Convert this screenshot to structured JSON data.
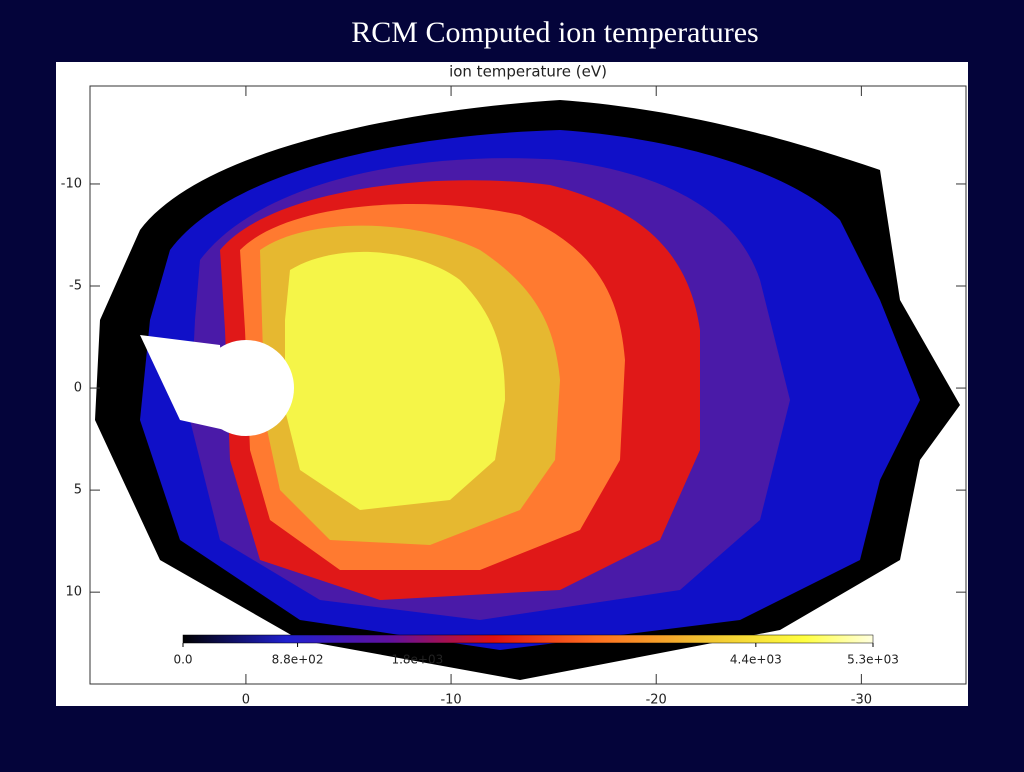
{
  "slide_title": "RCM Computed ion temperatures",
  "chart_data": {
    "type": "contour",
    "title": "ion temperature (eV)",
    "xlim": [
      7.6,
      -35.1
    ],
    "xticks": [
      0,
      -10,
      -20,
      -30
    ],
    "ylim": [
      -14.8,
      14.5
    ],
    "yticks": [
      -10,
      -5,
      0,
      5,
      10
    ],
    "colorbar_lim": [
      0,
      5300
    ],
    "colorbar_ticks": [
      {
        "value": 0,
        "label": "0.0"
      },
      {
        "value": 880,
        "label": "8.8e+02"
      },
      {
        "value": 1800,
        "label": "1.8e+03"
      },
      {
        "value": 4400,
        "label": "4.4e+03"
      },
      {
        "value": 5300,
        "label": "5.3e+03"
      }
    ]
  }
}
